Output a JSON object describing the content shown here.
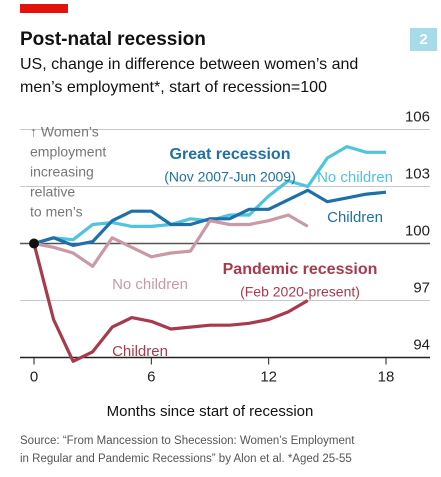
{
  "chart_data": {
    "type": "line",
    "title": "Post-natal recession",
    "badge": "2",
    "subtitle": [
      "US, change in difference between women’s and",
      "men’s employment*, start of recession=100"
    ],
    "xlabel": "Months since start of recession",
    "source": [
      "Source: “From Mancession to Shecession: Women’s Employment",
      "in Regular and Pandemic Recessions” by Alon et al.   *Aged 25-55"
    ],
    "note": [
      "↑ Women’s",
      "employment",
      "increasing",
      "relative",
      "to men’s"
    ],
    "group_labels": [
      {
        "text": "Great recession",
        "sub": "(Nov 2007-Jun 2009)",
        "color": "#1f6fa8"
      },
      {
        "text": "Pandemic recession",
        "sub": "(Feb 2020-present)",
        "color": "#a83a4e"
      }
    ],
    "x": [
      0,
      1,
      2,
      3,
      4,
      5,
      6,
      7,
      8,
      9,
      10,
      11,
      12,
      13,
      14,
      15,
      16,
      17,
      18
    ],
    "series": [
      {
        "name": "No children",
        "color": "#4fc4de",
        "values": [
          100,
          100.3,
          100.2,
          101,
          101.1,
          100.9,
          100.9,
          101,
          101.3,
          101.2,
          101.5,
          101.5,
          102.5,
          103.3,
          103,
          104.5,
          105.1,
          104.8,
          104.8
        ]
      },
      {
        "name": "Children",
        "color": "#1f6fa8",
        "values": [
          100,
          100.3,
          99.9,
          100.1,
          101.2,
          101.7,
          101.7,
          101,
          101,
          101.3,
          101.3,
          101.8,
          101.8,
          102.3,
          102.8,
          102.2,
          102.4,
          102.6,
          102.7
        ]
      },
      {
        "name": "No children",
        "color": "#c99aa5",
        "values": [
          100,
          99.8,
          99.5,
          98.8,
          100.3,
          99.8,
          99.3,
          99.5,
          99.6,
          101.2,
          101,
          101,
          101.2,
          101.5,
          100.9,
          null,
          null,
          null,
          null
        ]
      },
      {
        "name": "Children",
        "color": "#a83a4e",
        "values": [
          100,
          96,
          93.8,
          94.3,
          95.6,
          96.1,
          95.9,
          95.5,
          95.6,
          95.7,
          95.7,
          95.8,
          96,
          96.4,
          97,
          null,
          null,
          null,
          null
        ]
      }
    ],
    "xlim": [
      0,
      18
    ],
    "xticks": [
      0,
      6,
      12,
      18
    ],
    "ylim": [
      93.5,
      106.5
    ],
    "yticks": [
      94,
      97,
      100,
      103,
      106
    ]
  }
}
